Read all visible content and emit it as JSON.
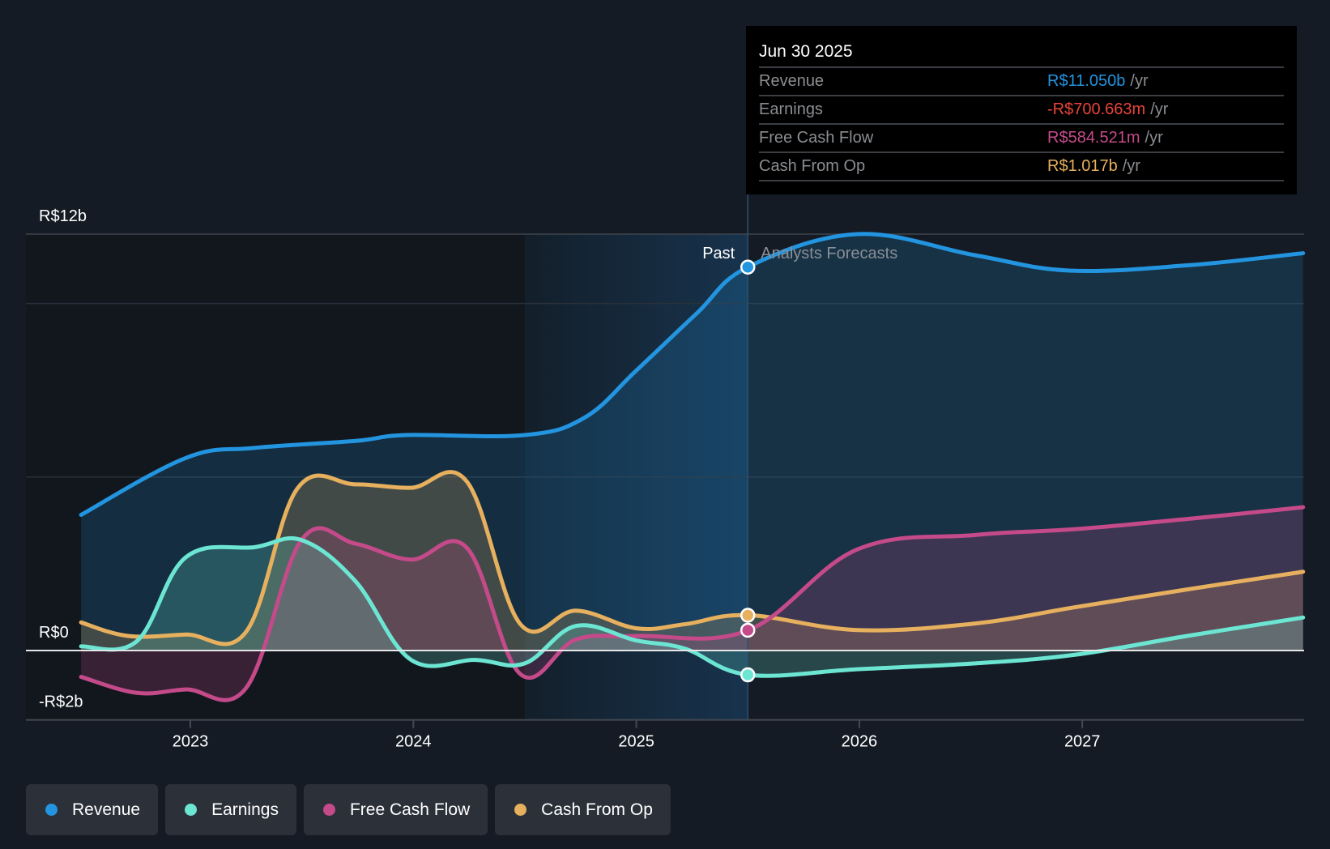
{
  "colors": {
    "revenue": "#2394df",
    "earnings": "#6ce5d3",
    "free_cash_flow": "#c44a8a",
    "cash_from_op": "#e6b05e",
    "earnings_negative_text": "#e8433a",
    "background": "#151b24",
    "tooltip_bg": "#000000"
  },
  "tooltip": {
    "date": "Jun 30 2025",
    "rows": [
      {
        "label": "Revenue",
        "value": "R$11.050b",
        "unit": "/yr",
        "color": "#2394df"
      },
      {
        "label": "Earnings",
        "value": "-R$700.663m",
        "unit": "/yr",
        "color": "#e8433a"
      },
      {
        "label": "Free Cash Flow",
        "value": "R$584.521m",
        "unit": "/yr",
        "color": "#c44a8a"
      },
      {
        "label": "Cash From Op",
        "value": "R$1.017b",
        "unit": "/yr",
        "color": "#e6b05e"
      }
    ]
  },
  "annotations": {
    "past": "Past",
    "forecast": "Analysts Forecasts"
  },
  "legend": [
    {
      "label": "Revenue",
      "color": "#2394df"
    },
    {
      "label": "Earnings",
      "color": "#6ce5d3"
    },
    {
      "label": "Free Cash Flow",
      "color": "#c44a8a"
    },
    {
      "label": "Cash From Op",
      "color": "#e6b05e"
    }
  ],
  "chart_data": {
    "type": "area",
    "title": "",
    "xlabel": "",
    "ylabel": "",
    "x_unit": "year",
    "y_unit": "R$ billions",
    "xlim": [
      2022.5,
      2028.0
    ],
    "ylim": [
      -2,
      12
    ],
    "y_ticks": [
      {
        "value": 12,
        "label": "R$12b"
      },
      {
        "value": 0,
        "label": "R$0"
      },
      {
        "value": -2,
        "label": "-R$2b"
      }
    ],
    "y_gridlines": [
      12,
      10,
      5,
      0
    ],
    "x_ticks": [
      {
        "value": 2023,
        "label": "2023"
      },
      {
        "value": 2024,
        "label": "2024"
      },
      {
        "value": 2025,
        "label": "2025"
      },
      {
        "value": 2026,
        "label": "2026"
      },
      {
        "value": 2027,
        "label": "2027"
      }
    ],
    "today": 2025.5,
    "highlight_start": 2024.5,
    "legend_position": "bottom-left",
    "series": [
      {
        "name": "Revenue",
        "key": "revenue",
        "points": [
          [
            2022.51,
            3.91
          ],
          [
            2022.98,
            5.55
          ],
          [
            2023.29,
            5.84
          ],
          [
            2023.74,
            6.04
          ],
          [
            2023.97,
            6.21
          ],
          [
            2024.5,
            6.21
          ],
          [
            2024.77,
            6.72
          ],
          [
            2025.0,
            8.07
          ],
          [
            2025.27,
            9.71
          ],
          [
            2025.5,
            11.05
          ],
          [
            2025.99,
            12.0
          ],
          [
            2026.52,
            11.39
          ],
          [
            2026.94,
            10.95
          ],
          [
            2027.47,
            11.1
          ],
          [
            2027.99,
            11.45
          ]
        ]
      },
      {
        "name": "Earnings",
        "key": "earnings",
        "points": [
          [
            2022.51,
            0.12
          ],
          [
            2022.76,
            0.27
          ],
          [
            2022.98,
            2.69
          ],
          [
            2023.29,
            2.98
          ],
          [
            2023.5,
            3.18
          ],
          [
            2023.74,
            2.0
          ],
          [
            2023.99,
            -0.27
          ],
          [
            2024.28,
            -0.27
          ],
          [
            2024.5,
            -0.37
          ],
          [
            2024.73,
            0.71
          ],
          [
            2025.0,
            0.29
          ],
          [
            2025.22,
            0.05
          ],
          [
            2025.5,
            -0.7
          ],
          [
            2025.99,
            -0.54
          ],
          [
            2026.52,
            -0.37
          ],
          [
            2026.97,
            -0.12
          ],
          [
            2027.47,
            0.42
          ],
          [
            2027.99,
            0.95
          ]
        ]
      },
      {
        "name": "Free Cash Flow",
        "key": "free_cash_flow",
        "points": [
          [
            2022.51,
            -0.76
          ],
          [
            2022.76,
            -1.22
          ],
          [
            2022.98,
            -1.12
          ],
          [
            2023.25,
            -1.08
          ],
          [
            2023.5,
            3.2
          ],
          [
            2023.74,
            3.08
          ],
          [
            2023.99,
            2.62
          ],
          [
            2024.24,
            2.96
          ],
          [
            2024.48,
            -0.68
          ],
          [
            2024.73,
            0.32
          ],
          [
            2025.0,
            0.42
          ],
          [
            2025.5,
            0.58
          ],
          [
            2025.99,
            2.91
          ],
          [
            2026.52,
            3.33
          ],
          [
            2026.97,
            3.5
          ],
          [
            2027.47,
            3.79
          ],
          [
            2027.99,
            4.13
          ]
        ]
      },
      {
        "name": "Cash From Op",
        "key": "cash_from_op",
        "points": [
          [
            2022.51,
            0.81
          ],
          [
            2022.72,
            0.42
          ],
          [
            2022.98,
            0.46
          ],
          [
            2023.25,
            0.54
          ],
          [
            2023.48,
            4.67
          ],
          [
            2023.74,
            4.79
          ],
          [
            2023.99,
            4.69
          ],
          [
            2024.24,
            4.87
          ],
          [
            2024.48,
            0.76
          ],
          [
            2024.73,
            1.15
          ],
          [
            2025.0,
            0.64
          ],
          [
            2025.22,
            0.76
          ],
          [
            2025.5,
            1.02
          ],
          [
            2025.99,
            0.59
          ],
          [
            2026.52,
            0.78
          ],
          [
            2026.97,
            1.25
          ],
          [
            2027.47,
            1.76
          ],
          [
            2027.99,
            2.27
          ]
        ]
      }
    ],
    "markers_at_today": [
      {
        "series": "Revenue",
        "value": 11.05
      },
      {
        "series": "Cash From Op",
        "value": 1.017
      },
      {
        "series": "Free Cash Flow",
        "value": 0.585
      },
      {
        "series": "Earnings",
        "value": -0.701
      }
    ]
  }
}
